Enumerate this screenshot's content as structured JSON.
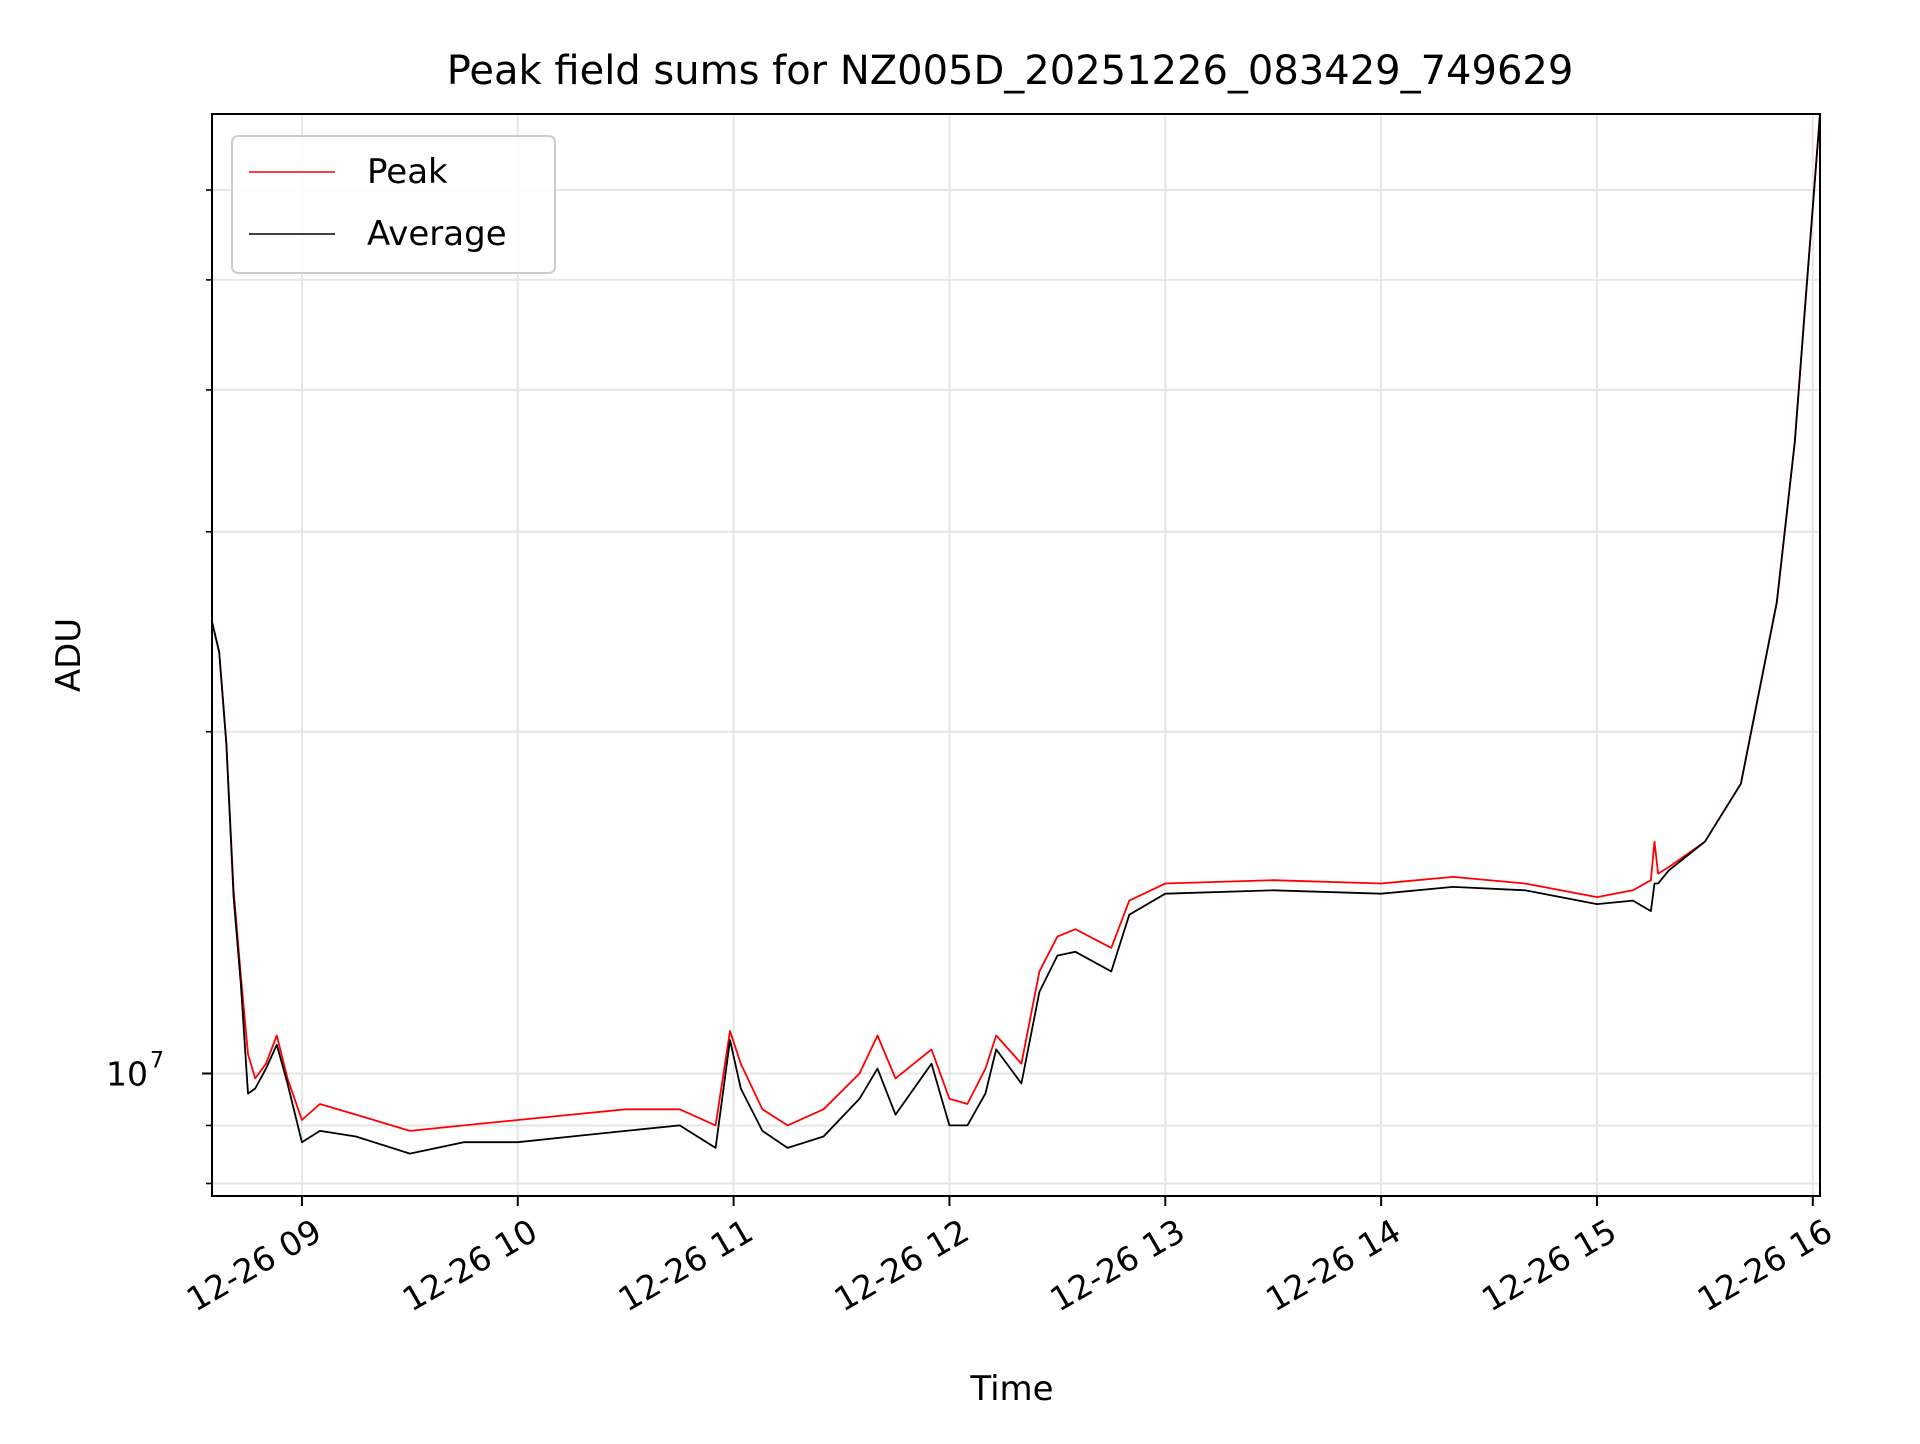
{
  "chart_data": {
    "type": "line",
    "title": "Peak field sums for NZ005D_20251226_083429_749629",
    "xlabel": "Time",
    "ylabel": "ADU",
    "y_scale": "log",
    "grid": true,
    "legend_position": "upper-left",
    "x_tick_labels": [
      "12-26 09",
      "12-26 10",
      "12-26 11",
      "12-26 12",
      "12-26 13",
      "12-26 14",
      "12-26 15",
      "12-26 16"
    ],
    "x_ticks": [
      "2025-12-26 09:00",
      "2025-12-26 10:00",
      "2025-12-26 11:00",
      "2025-12-26 12:00",
      "2025-12-26 13:00",
      "2025-12-26 14:00",
      "2025-12-26 15:00",
      "2025-12-26 16:00"
    ],
    "xlim": [
      "2025-12-26 08:35",
      "2025-12-26 16:02"
    ],
    "y_major_tick_labels": [
      {
        "value": 10000000,
        "base": "10",
        "exp": "7"
      }
    ],
    "y_minor_ticks": [
      8000000,
      9000000,
      20000000,
      30000000,
      40000000,
      50000000,
      60000000
    ],
    "ylim": [
      7800000,
      70000000
    ],
    "series": [
      {
        "name": "Peak",
        "color": "#ff0000",
        "x": [
          "2025-12-26 08:35",
          "2025-12-26 08:37",
          "2025-12-26 08:39",
          "2025-12-26 08:41",
          "2025-12-26 08:43",
          "2025-12-26 08:45",
          "2025-12-26 08:47",
          "2025-12-26 08:50",
          "2025-12-26 08:53",
          "2025-12-26 08:56",
          "2025-12-26 09:00",
          "2025-12-26 09:05",
          "2025-12-26 09:15",
          "2025-12-26 09:30",
          "2025-12-26 09:45",
          "2025-12-26 10:00",
          "2025-12-26 10:15",
          "2025-12-26 10:30",
          "2025-12-26 10:45",
          "2025-12-26 10:55",
          "2025-12-26 10:59",
          "2025-12-26 11:02",
          "2025-12-26 11:08",
          "2025-12-26 11:15",
          "2025-12-26 11:25",
          "2025-12-26 11:35",
          "2025-12-26 11:40",
          "2025-12-26 11:45",
          "2025-12-26 11:55",
          "2025-12-26 12:00",
          "2025-12-26 12:05",
          "2025-12-26 12:10",
          "2025-12-26 12:13",
          "2025-12-26 12:20",
          "2025-12-26 12:25",
          "2025-12-26 12:30",
          "2025-12-26 12:35",
          "2025-12-26 12:45",
          "2025-12-26 12:50",
          "2025-12-26 13:00",
          "2025-12-26 13:30",
          "2025-12-26 14:00",
          "2025-12-26 14:20",
          "2025-12-26 14:40",
          "2025-12-26 15:00",
          "2025-12-26 15:10",
          "2025-12-26 15:15",
          "2025-12-26 15:16",
          "2025-12-26 15:17",
          "2025-12-26 15:20",
          "2025-12-26 15:30",
          "2025-12-26 15:40",
          "2025-12-26 15:50",
          "2025-12-26 15:55",
          "2025-12-26 15:58",
          "2025-12-26 16:02"
        ],
        "y": [
          25000000,
          23500000,
          19500000,
          14500000,
          12200000,
          10400000,
          9900000,
          10200000,
          10800000,
          9900000,
          9100000,
          9400000,
          9200000,
          8900000,
          9000000,
          9100000,
          9200000,
          9300000,
          9300000,
          9000000,
          10900000,
          10200000,
          9300000,
          9000000,
          9300000,
          10000000,
          10800000,
          9900000,
          10500000,
          9500000,
          9400000,
          10100000,
          10800000,
          10200000,
          12300000,
          13200000,
          13400000,
          12900000,
          14200000,
          14700000,
          14800000,
          14700000,
          14900000,
          14700000,
          14300000,
          14500000,
          14800000,
          16000000,
          15000000,
          15200000,
          16000000,
          18000000,
          26000000,
          36000000,
          48000000,
          70000000
        ]
      },
      {
        "name": "Average",
        "color": "#000000",
        "x": [
          "2025-12-26 08:35",
          "2025-12-26 08:37",
          "2025-12-26 08:39",
          "2025-12-26 08:41",
          "2025-12-26 08:43",
          "2025-12-26 08:45",
          "2025-12-26 08:47",
          "2025-12-26 08:50",
          "2025-12-26 08:53",
          "2025-12-26 08:56",
          "2025-12-26 09:00",
          "2025-12-26 09:05",
          "2025-12-26 09:15",
          "2025-12-26 09:30",
          "2025-12-26 09:45",
          "2025-12-26 10:00",
          "2025-12-26 10:15",
          "2025-12-26 10:30",
          "2025-12-26 10:45",
          "2025-12-26 10:55",
          "2025-12-26 10:59",
          "2025-12-26 11:02",
          "2025-12-26 11:08",
          "2025-12-26 11:15",
          "2025-12-26 11:25",
          "2025-12-26 11:35",
          "2025-12-26 11:40",
          "2025-12-26 11:45",
          "2025-12-26 11:55",
          "2025-12-26 12:00",
          "2025-12-26 12:05",
          "2025-12-26 12:10",
          "2025-12-26 12:13",
          "2025-12-26 12:20",
          "2025-12-26 12:25",
          "2025-12-26 12:30",
          "2025-12-26 12:35",
          "2025-12-26 12:45",
          "2025-12-26 12:50",
          "2025-12-26 13:00",
          "2025-12-26 13:30",
          "2025-12-26 14:00",
          "2025-12-26 14:20",
          "2025-12-26 14:40",
          "2025-12-26 15:00",
          "2025-12-26 15:10",
          "2025-12-26 15:15",
          "2025-12-26 15:16",
          "2025-12-26 15:17",
          "2025-12-26 15:20",
          "2025-12-26 15:30",
          "2025-12-26 15:40",
          "2025-12-26 15:50",
          "2025-12-26 15:55",
          "2025-12-26 15:58",
          "2025-12-26 16:02"
        ],
        "y": [
          25000000,
          23500000,
          19500000,
          14300000,
          12000000,
          9600000,
          9700000,
          10100000,
          10600000,
          9800000,
          8700000,
          8900000,
          8800000,
          8500000,
          8700000,
          8700000,
          8800000,
          8900000,
          9000000,
          8600000,
          10700000,
          9700000,
          8900000,
          8600000,
          8800000,
          9500000,
          10100000,
          9200000,
          10200000,
          9000000,
          9000000,
          9600000,
          10500000,
          9800000,
          11800000,
          12700000,
          12800000,
          12300000,
          13800000,
          14400000,
          14500000,
          14400000,
          14600000,
          14500000,
          14100000,
          14200000,
          13900000,
          14700000,
          14700000,
          15100000,
          16000000,
          18000000,
          26000000,
          36000000,
          48000000,
          70000000
        ]
      }
    ]
  }
}
